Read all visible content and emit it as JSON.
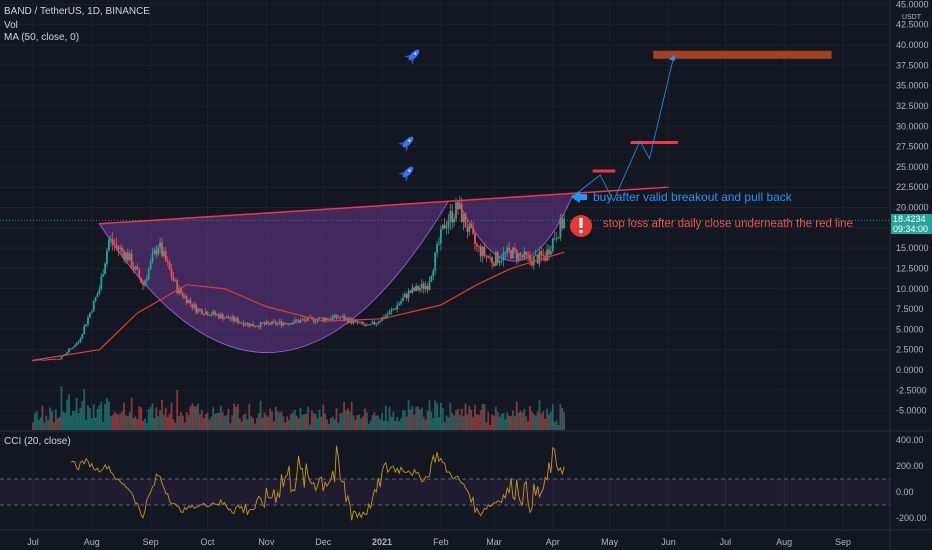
{
  "header": {
    "symbol_line": "BAND / TetherUS, 1D, BINANCE",
    "vol_label": "Vol",
    "ma_label": "MA (50, close, 0)",
    "cci_label": "CCI (20, close)"
  },
  "price_axis": {
    "currency": "USDT",
    "last_price": "18.4234",
    "countdown": "09:34:00"
  },
  "annotations": {
    "buy_note": "buy after valid breakout and pull back",
    "stop_note": "stop loss after daily close underneath the red line"
  },
  "colors": {
    "background": "#131722",
    "up": "#26a69a",
    "down": "#ef5350",
    "ma": "#e53935",
    "trendline": "#f23645",
    "cup_fill": "#7b3fa6",
    "cci": "#c8961e",
    "annotation_blue": "#2196f3",
    "target_box": "#b8451f"
  },
  "chart_data": [
    {
      "type": "candlestick",
      "title": "BAND / TetherUS, 1D, BINANCE",
      "x_ticks": [
        "Jul",
        "Aug",
        "Sep",
        "Oct",
        "Nov",
        "Dec",
        "2021",
        "Feb",
        "Mar",
        "Apr",
        "May",
        "Jun",
        "Jul",
        "Aug",
        "Sep"
      ],
      "y_ticks": [
        "-5.0000",
        "-2.5000",
        "0.0000",
        "2.5000",
        "5.0000",
        "7.5000",
        "10.0000",
        "12.5000",
        "15.0000",
        "17.5000",
        "20.0000",
        "22.5000",
        "25.0000",
        "27.5000",
        "30.0000",
        "32.5000",
        "35.0000",
        "37.5000",
        "40.0000",
        "42.5000",
        "45.0000"
      ],
      "ylim": [
        -5,
        45
      ],
      "last_price": 18.4234,
      "close_series": [
        {
          "date": "2020-07-01",
          "close": 1.2
        },
        {
          "date": "2020-07-15",
          "close": 1.4
        },
        {
          "date": "2020-07-25",
          "close": 3.5
        },
        {
          "date": "2020-08-05",
          "close": 10.0
        },
        {
          "date": "2020-08-10",
          "close": 16.0
        },
        {
          "date": "2020-08-20",
          "close": 14.0
        },
        {
          "date": "2020-08-28",
          "close": 10.5
        },
        {
          "date": "2020-09-05",
          "close": 15.5
        },
        {
          "date": "2020-09-15",
          "close": 10.0
        },
        {
          "date": "2020-09-25",
          "close": 7.5
        },
        {
          "date": "2020-10-10",
          "close": 6.5
        },
        {
          "date": "2020-10-25",
          "close": 5.5
        },
        {
          "date": "2020-11-10",
          "close": 5.8
        },
        {
          "date": "2020-11-25",
          "close": 6.2
        },
        {
          "date": "2020-12-10",
          "close": 6.5
        },
        {
          "date": "2020-12-25",
          "close": 5.3
        },
        {
          "date": "2021-01-05",
          "close": 7.0
        },
        {
          "date": "2021-01-15",
          "close": 9.5
        },
        {
          "date": "2021-01-25",
          "close": 10.5
        },
        {
          "date": "2021-02-03",
          "close": 18.0
        },
        {
          "date": "2021-02-10",
          "close": 20.0
        },
        {
          "date": "2021-02-20",
          "close": 15.0
        },
        {
          "date": "2021-02-28",
          "close": 13.5
        },
        {
          "date": "2021-03-10",
          "close": 14.5
        },
        {
          "date": "2021-03-20",
          "close": 13.5
        },
        {
          "date": "2021-03-28",
          "close": 14.0
        },
        {
          "date": "2021-04-02",
          "close": 16.5
        },
        {
          "date": "2021-04-07",
          "close": 18.4
        }
      ],
      "ma50_series": [
        {
          "date": "2020-07-01",
          "ma": 1.2
        },
        {
          "date": "2020-08-05",
          "ma": 2.5
        },
        {
          "date": "2020-08-25",
          "ma": 7.0
        },
        {
          "date": "2020-09-20",
          "ma": 10.5
        },
        {
          "date": "2020-10-10",
          "ma": 10.0
        },
        {
          "date": "2020-11-01",
          "ma": 7.8
        },
        {
          "date": "2020-12-01",
          "ma": 6.0
        },
        {
          "date": "2021-01-01",
          "ma": 6.3
        },
        {
          "date": "2021-02-01",
          "ma": 8.0
        },
        {
          "date": "2021-02-20",
          "ma": 10.5
        },
        {
          "date": "2021-03-10",
          "ma": 12.5
        },
        {
          "date": "2021-04-07",
          "ma": 14.5
        }
      ],
      "trendline": [
        {
          "date": "2020-08-05",
          "price": 18.0
        },
        {
          "date": "2021-06-01",
          "price": 22.5
        }
      ],
      "targets": [
        {
          "price": 24.5
        },
        {
          "price": 28.0
        },
        {
          "price": 38.8
        }
      ]
    },
    {
      "type": "line",
      "title": "CCI (20, close)",
      "y_ticks": [
        "-200.00",
        "0.00",
        "200.00",
        "400.00"
      ],
      "ylim": [
        -300,
        450
      ],
      "bands": [
        -100,
        100
      ]
    }
  ]
}
